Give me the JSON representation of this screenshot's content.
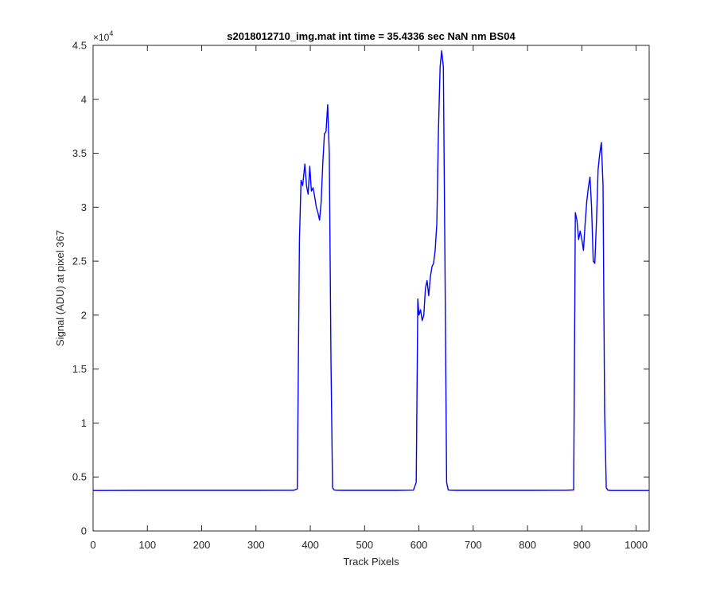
{
  "chart_data": {
    "type": "line",
    "title": "s2018012710_img.mat int time = 35.4336 sec  NaN nm BS04",
    "xlabel": "Track Pixels",
    "ylabel": "Signal (ADU) at pixel 367",
    "xlim": [
      0,
      1024
    ],
    "ylim": [
      0,
      45000
    ],
    "x_ticks": [
      0,
      100,
      200,
      300,
      400,
      500,
      600,
      700,
      800,
      900,
      1000
    ],
    "x_tick_labels": [
      "0",
      "100",
      "200",
      "300",
      "400",
      "500",
      "600",
      "700",
      "800",
      "900",
      "1000"
    ],
    "y_ticks": [
      0,
      5000,
      10000,
      15000,
      20000,
      25000,
      30000,
      35000,
      40000,
      45000
    ],
    "y_tick_labels": [
      "0",
      "0.5",
      "1",
      "1.5",
      "2",
      "2.5",
      "3",
      "3.5",
      "4",
      "4.5"
    ],
    "y_exponent_label": "×10",
    "y_exponent_power": "4",
    "grid": false,
    "line_color": "#0000ff",
    "series": [
      {
        "x": [
          0,
          100,
          200,
          300,
          370,
          376,
          380,
          383,
          386,
          390,
          393,
          396,
          399,
          402,
          405,
          408,
          411,
          414,
          417,
          420,
          423,
          426,
          429,
          432,
          435,
          438,
          441,
          444,
          448,
          460,
          500,
          560,
          590,
          595,
          598,
          600,
          603,
          606,
          609,
          612,
          615,
          618,
          621,
          624,
          627,
          630,
          633,
          636,
          639,
          642,
          645,
          648,
          651,
          654,
          657,
          660,
          670,
          720,
          800,
          870,
          885,
          888,
          891,
          894,
          897,
          900,
          903,
          906,
          909,
          912,
          915,
          918,
          921,
          924,
          927,
          930,
          933,
          936,
          939,
          942,
          945,
          948,
          951,
          954,
          957,
          965,
          1000,
          1024
        ],
        "y": [
          3750,
          3760,
          3760,
          3760,
          3770,
          3900,
          27000,
          32500,
          32000,
          34000,
          32000,
          31200,
          33800,
          31500,
          31800,
          31000,
          30000,
          29500,
          28800,
          30500,
          34000,
          36800,
          37000,
          39500,
          35000,
          16000,
          4000,
          3790,
          3770,
          3760,
          3760,
          3760,
          3780,
          4500,
          21500,
          20000,
          20500,
          19500,
          20000,
          22500,
          23200,
          21800,
          23500,
          24500,
          24800,
          26000,
          28500,
          37000,
          43000,
          44500,
          43000,
          25000,
          4500,
          3800,
          3780,
          3770,
          3760,
          3760,
          3760,
          3770,
          3800,
          29500,
          28800,
          27000,
          27800,
          27000,
          26000,
          28500,
          30500,
          31800,
          32800,
          30000,
          25000,
          24800,
          28800,
          33500,
          35000,
          36000,
          32000,
          11000,
          4000,
          3780,
          3760,
          3750,
          3750,
          3750,
          3750,
          3750
        ]
      }
    ]
  }
}
